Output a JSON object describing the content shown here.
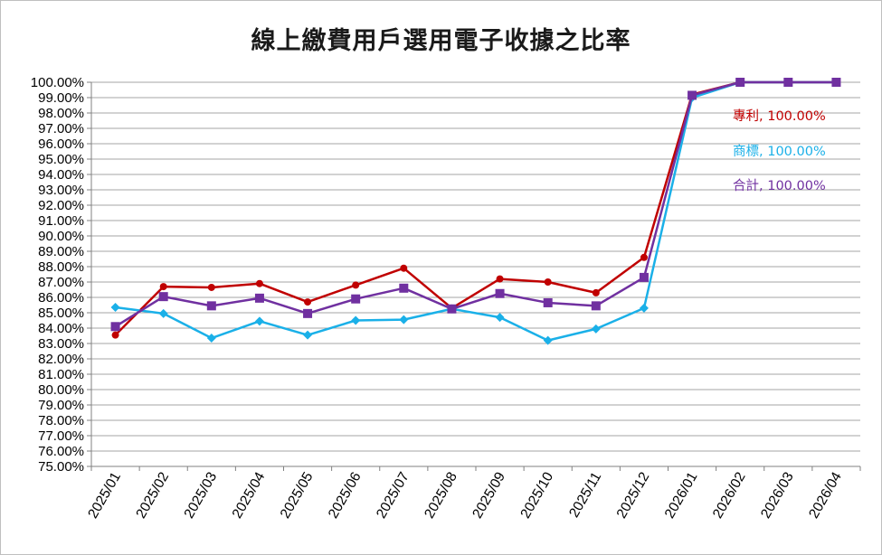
{
  "chart_data": {
    "type": "line",
    "title": "線上繳費用戶選用電子收據之比率",
    "xlabel": "",
    "ylabel": "",
    "ylim": [
      75,
      100
    ],
    "y_tick_step": 1,
    "y_tick_format": "percent_2dp",
    "grid": true,
    "legend": "none",
    "categories": [
      "2025/01",
      "2025/02",
      "2025/03",
      "2025/04",
      "2025/05",
      "2025/06",
      "2025/07",
      "2025/08",
      "2025/09",
      "2025/10",
      "2025/11",
      "2025/12",
      "2026/01",
      "2026/02",
      "2026/03",
      "2026/04"
    ],
    "series": [
      {
        "name": "專利",
        "color": "#c00000",
        "marker": "circle",
        "values": [
          83.55,
          86.7,
          86.65,
          86.9,
          85.7,
          86.8,
          87.9,
          85.3,
          87.2,
          87.0,
          86.3,
          88.6,
          99.2,
          100.0,
          100.0,
          100.0
        ]
      },
      {
        "name": "商標",
        "color": "#1ab0e8",
        "marker": "diamond",
        "values": [
          85.35,
          84.95,
          83.35,
          84.45,
          83.55,
          84.5,
          84.55,
          85.25,
          84.7,
          83.2,
          83.95,
          85.3,
          99.0,
          100.0,
          100.0,
          100.0
        ]
      },
      {
        "name": "合計",
        "color": "#7030a0",
        "marker": "square",
        "values": [
          84.1,
          86.05,
          85.45,
          85.95,
          84.95,
          85.9,
          86.6,
          85.25,
          86.25,
          85.65,
          85.45,
          87.3,
          99.15,
          100.0,
          100.0,
          100.0
        ]
      }
    ],
    "annotations": [
      {
        "series": "專利",
        "text": "專利, 100.00%"
      },
      {
        "series": "商標",
        "text": "商標, 100.00%"
      },
      {
        "series": "合計",
        "text": "合計, 100.00%"
      }
    ]
  }
}
